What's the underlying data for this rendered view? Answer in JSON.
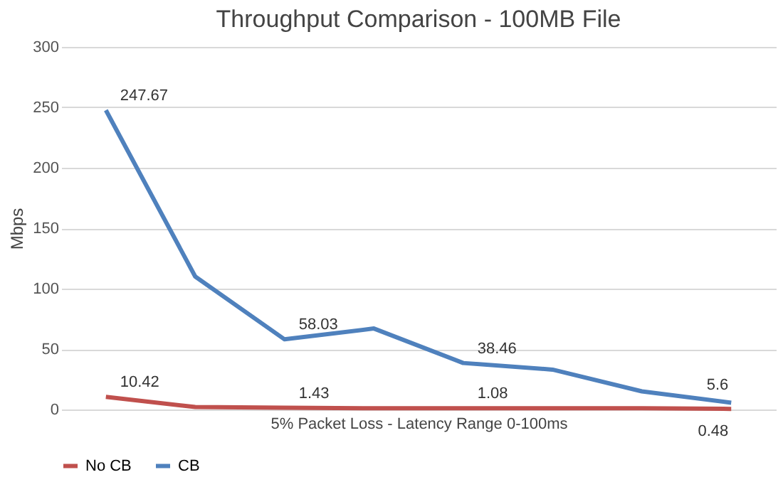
{
  "chart_data": {
    "type": "line",
    "title": "Throughput Comparison - 100MB File",
    "xlabel": "5% Packet Loss - Latency Range 0-100ms",
    "ylabel": "Mbps",
    "categories": [
      null,
      null,
      null,
      null,
      null,
      null,
      null,
      null
    ],
    "series": [
      {
        "name": "No CB",
        "color": "#c0504d",
        "values": [
          10.42,
          2,
          1.43,
          1,
          1.08,
          1,
          1,
          0.48
        ],
        "value_labels": [
          "10.42",
          null,
          "1.43",
          null,
          "1.08",
          null,
          null,
          "0.48"
        ]
      },
      {
        "name": "CB",
        "color": "#4f81bd",
        "values": [
          247.67,
          110,
          58.03,
          67,
          38.46,
          33,
          15,
          5.6
        ],
        "value_labels": [
          "247.67",
          null,
          "58.03",
          null,
          "38.46",
          null,
          null,
          "5.6"
        ]
      }
    ],
    "ylim": [
      0,
      300
    ],
    "yticks": [
      0,
      50,
      100,
      150,
      200,
      250,
      300
    ],
    "grid": "y",
    "legend": "bottom",
    "marker": "none",
    "line_style": "solid"
  }
}
